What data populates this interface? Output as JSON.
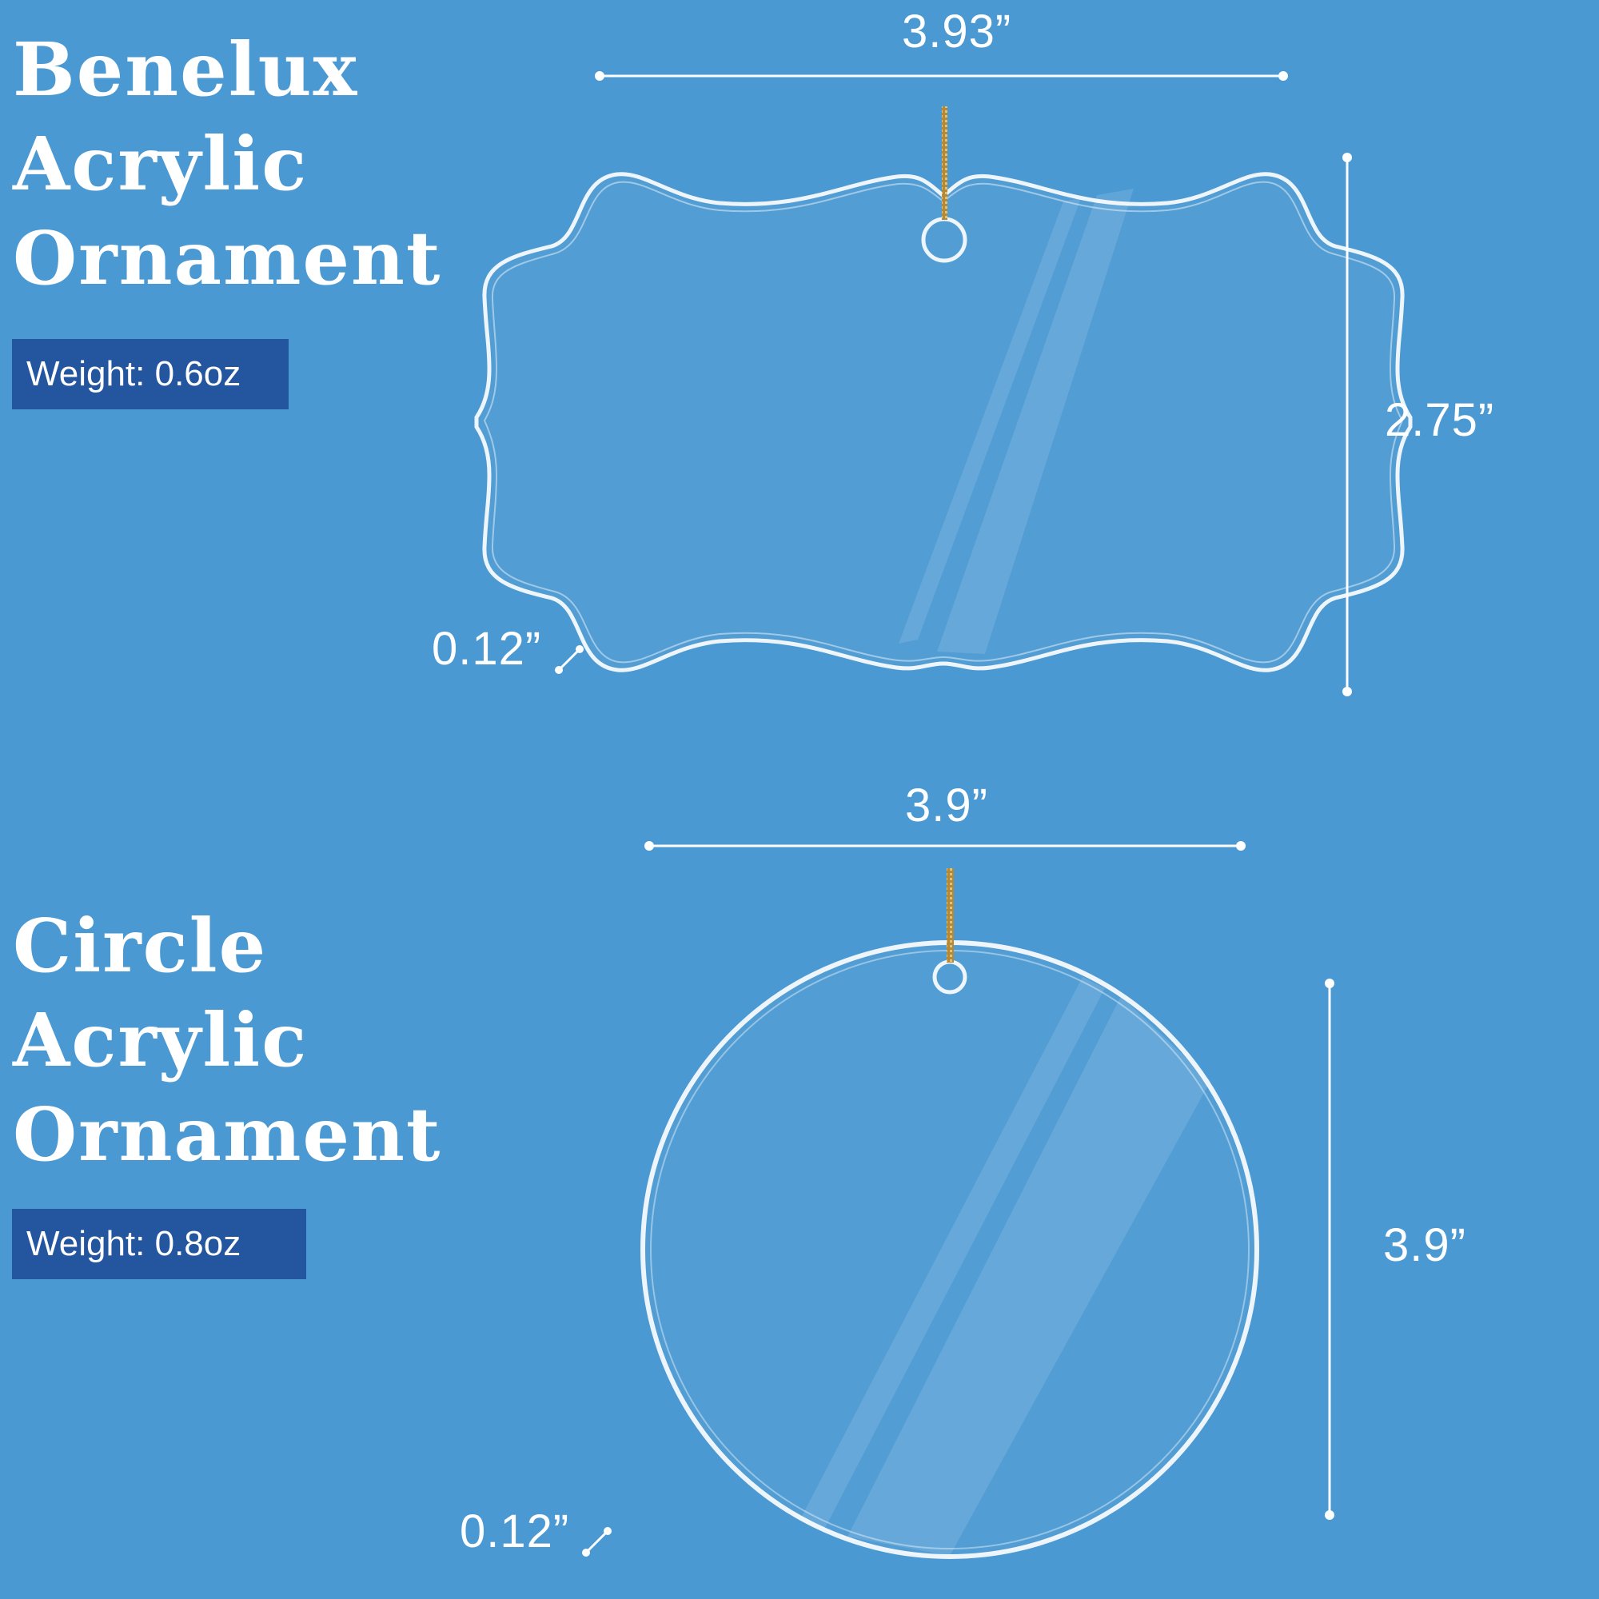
{
  "products": [
    {
      "title_lines": [
        "Benelux",
        "Acrylic",
        "Ornament"
      ],
      "weight": "Weight: 0.6oz",
      "width_label": "3.93”",
      "height_label": "2.75”",
      "thickness_label": "0.12”"
    },
    {
      "title_lines": [
        "Circle",
        "Acrylic",
        "Ornament"
      ],
      "weight": "Weight: 0.8oz",
      "width_label": "3.9”",
      "height_label": "3.9”",
      "thickness_label": "0.12”"
    }
  ],
  "colors": {
    "background": "#4a99d3",
    "weight_badge": "#2456a0",
    "text": "#ffffff",
    "string": "#c9a24a"
  }
}
